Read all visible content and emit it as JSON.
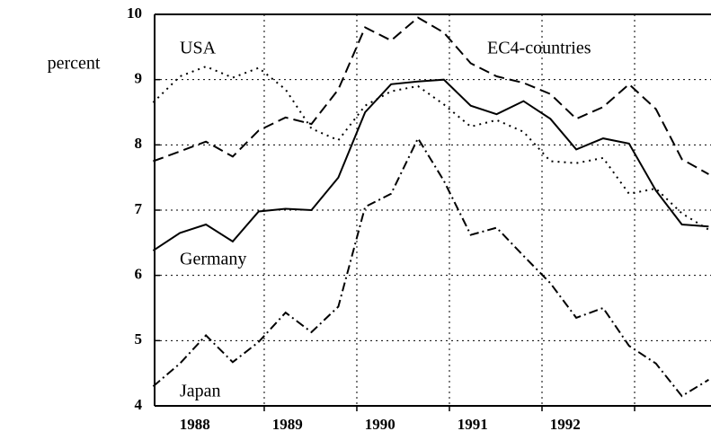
{
  "chart_data": {
    "type": "line",
    "y_label": "percent",
    "x": [
      1987.8,
      1988.09,
      1988.37,
      1988.66,
      1988.94,
      1989.23,
      1989.51,
      1989.8,
      1990.09,
      1990.37,
      1990.66,
      1990.94,
      1991.23,
      1991.51,
      1991.8,
      1992.09,
      1992.37,
      1992.66,
      1992.94,
      1993.23,
      1993.51,
      1993.8
    ],
    "series": [
      {
        "name": "USA",
        "color": "#000000",
        "dash": "2 5",
        "values": [
          8.65,
          9.05,
          9.2,
          9.03,
          9.18,
          8.85,
          8.25,
          8.07,
          8.6,
          8.82,
          8.9,
          8.62,
          8.28,
          8.38,
          8.2,
          7.75,
          7.72,
          7.8,
          7.25,
          7.33,
          6.95,
          6.7
        ]
      },
      {
        "name": "EC4-countries",
        "color": "#000000",
        "dash": "12 6",
        "values": [
          7.75,
          7.9,
          8.05,
          7.82,
          8.22,
          8.42,
          8.32,
          8.85,
          9.8,
          9.6,
          9.95,
          9.72,
          9.25,
          9.05,
          8.95,
          8.78,
          8.4,
          8.58,
          8.93,
          8.55,
          7.78,
          7.55
        ]
      },
      {
        "name": "Germany",
        "color": "#000000",
        "dash": "none",
        "values": [
          6.38,
          6.65,
          6.78,
          6.52,
          6.98,
          7.02,
          7.0,
          7.5,
          8.5,
          8.93,
          8.97,
          9.0,
          8.6,
          8.47,
          8.67,
          8.4,
          7.93,
          8.1,
          8.02,
          7.3,
          6.78,
          6.75
        ]
      },
      {
        "name": "Japan",
        "color": "#000000",
        "dash": "10 4 2 4",
        "values": [
          4.3,
          4.65,
          5.08,
          4.67,
          4.98,
          5.43,
          5.13,
          5.52,
          7.05,
          7.25,
          8.1,
          7.45,
          6.62,
          6.73,
          6.3,
          5.88,
          5.35,
          5.5,
          4.92,
          4.65,
          4.15,
          4.4
        ]
      }
    ],
    "xlim": [
      1987.816,
      1993.825
    ],
    "xticks": [
      {
        "value": 1988.25,
        "label": "1988"
      },
      {
        "value": 1989.25,
        "label": "1989"
      },
      {
        "value": 1990.25,
        "label": "1990"
      },
      {
        "value": 1991.25,
        "label": "1991"
      },
      {
        "value": 1992.25,
        "label": "1992"
      }
    ],
    "xgrid": [
      1989,
      1990,
      1991,
      1992,
      1993
    ],
    "ylim": [
      4,
      10
    ],
    "yticks": [
      4,
      5,
      6,
      7,
      8,
      9,
      10
    ],
    "grid": true
  }
}
